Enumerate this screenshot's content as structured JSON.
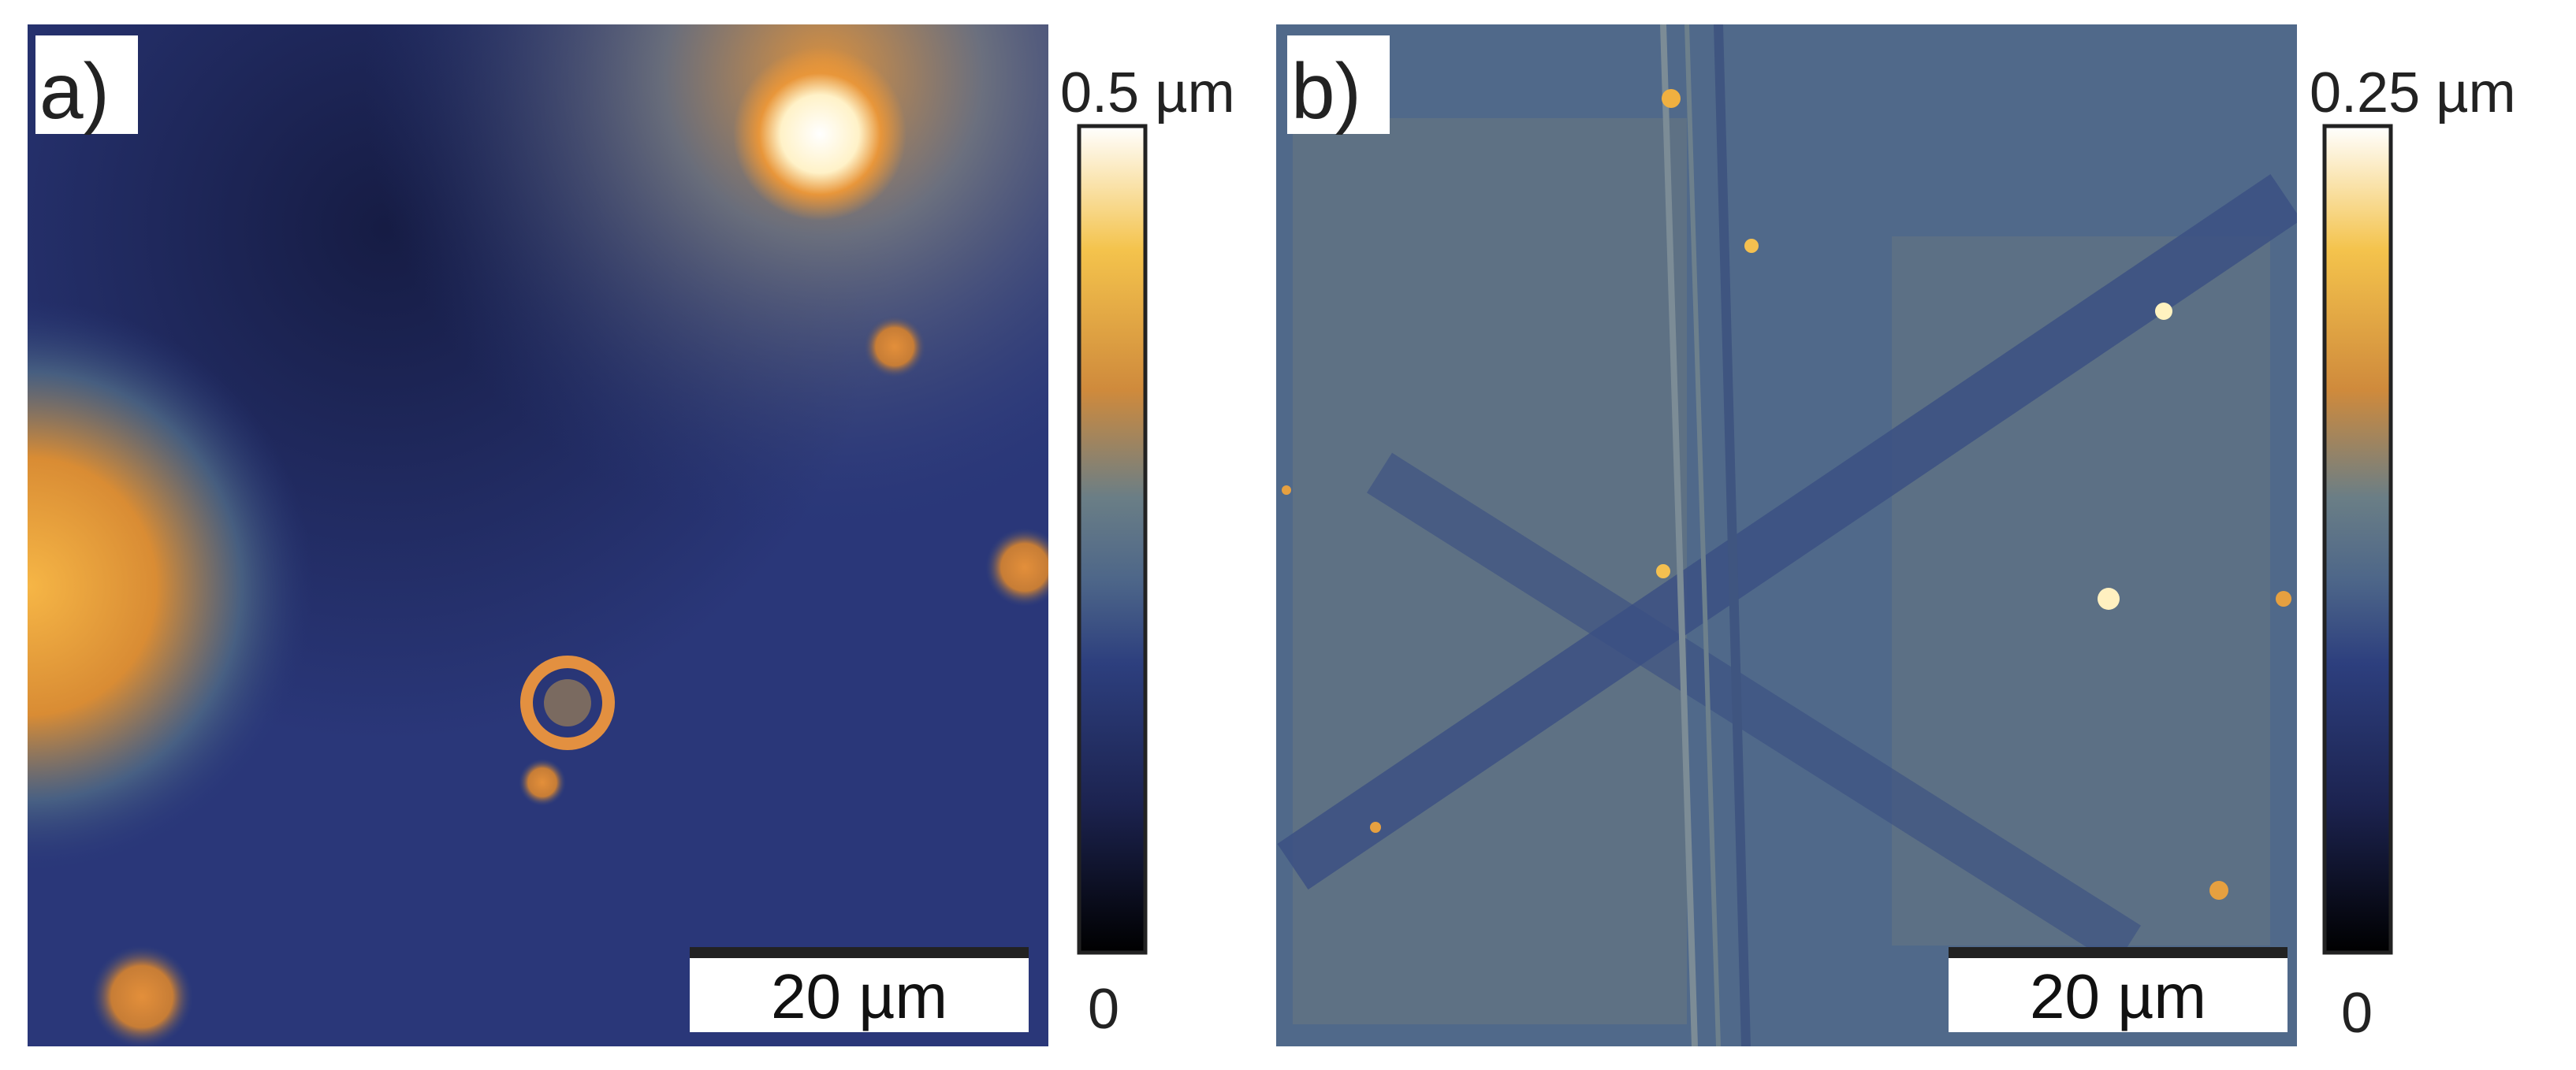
{
  "panels": [
    {
      "label": "a)",
      "scale_bar": "20 µm",
      "colorbar": {
        "max": "0.5 µm",
        "min": "0"
      }
    },
    {
      "label": "b)",
      "scale_bar": "20 µm",
      "colorbar": {
        "max": "0.25 µm",
        "min": "0"
      }
    }
  ]
}
